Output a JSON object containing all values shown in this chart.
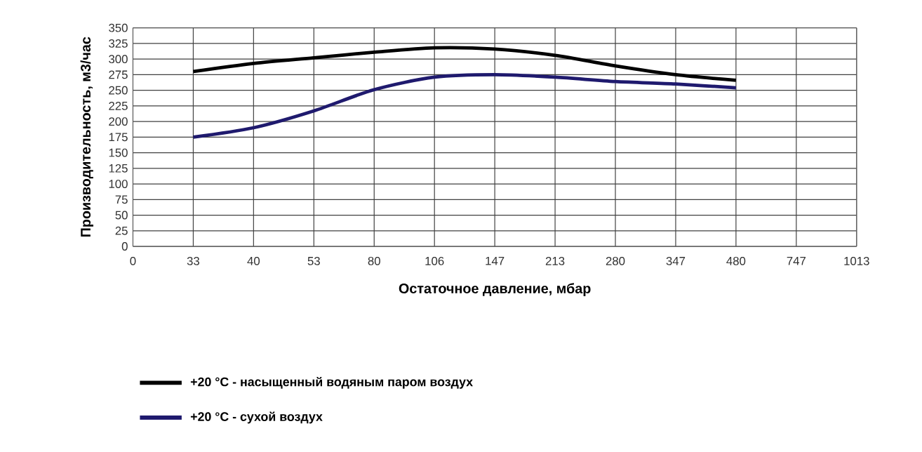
{
  "chart_data": {
    "type": "line",
    "xlabel": "Остаточное давление, мбар",
    "ylabel": "Производительность, м3/час",
    "categories": [
      "0",
      "33",
      "40",
      "53",
      "80",
      "106",
      "147",
      "213",
      "280",
      "347",
      "480",
      "747",
      "1013"
    ],
    "series": [
      {
        "name": "+20 °C - насыщенный водяным паром воздух",
        "color": "#000000",
        "values": [
          null,
          280,
          293,
          302,
          311,
          318,
          316,
          306,
          289,
          275,
          266,
          null,
          null
        ]
      },
      {
        "name": "+20 °C - сухой воздух",
        "color": "#1f1a6e",
        "values": [
          null,
          175,
          190,
          217,
          251,
          271,
          275,
          271,
          264,
          260,
          254,
          null,
          null
        ]
      }
    ],
    "ylim": [
      0,
      350
    ],
    "yticks": [
      0,
      25,
      50,
      75,
      100,
      125,
      150,
      175,
      200,
      225,
      250,
      275,
      300,
      325,
      350
    ],
    "grid": true,
    "legend": "bottom left"
  }
}
